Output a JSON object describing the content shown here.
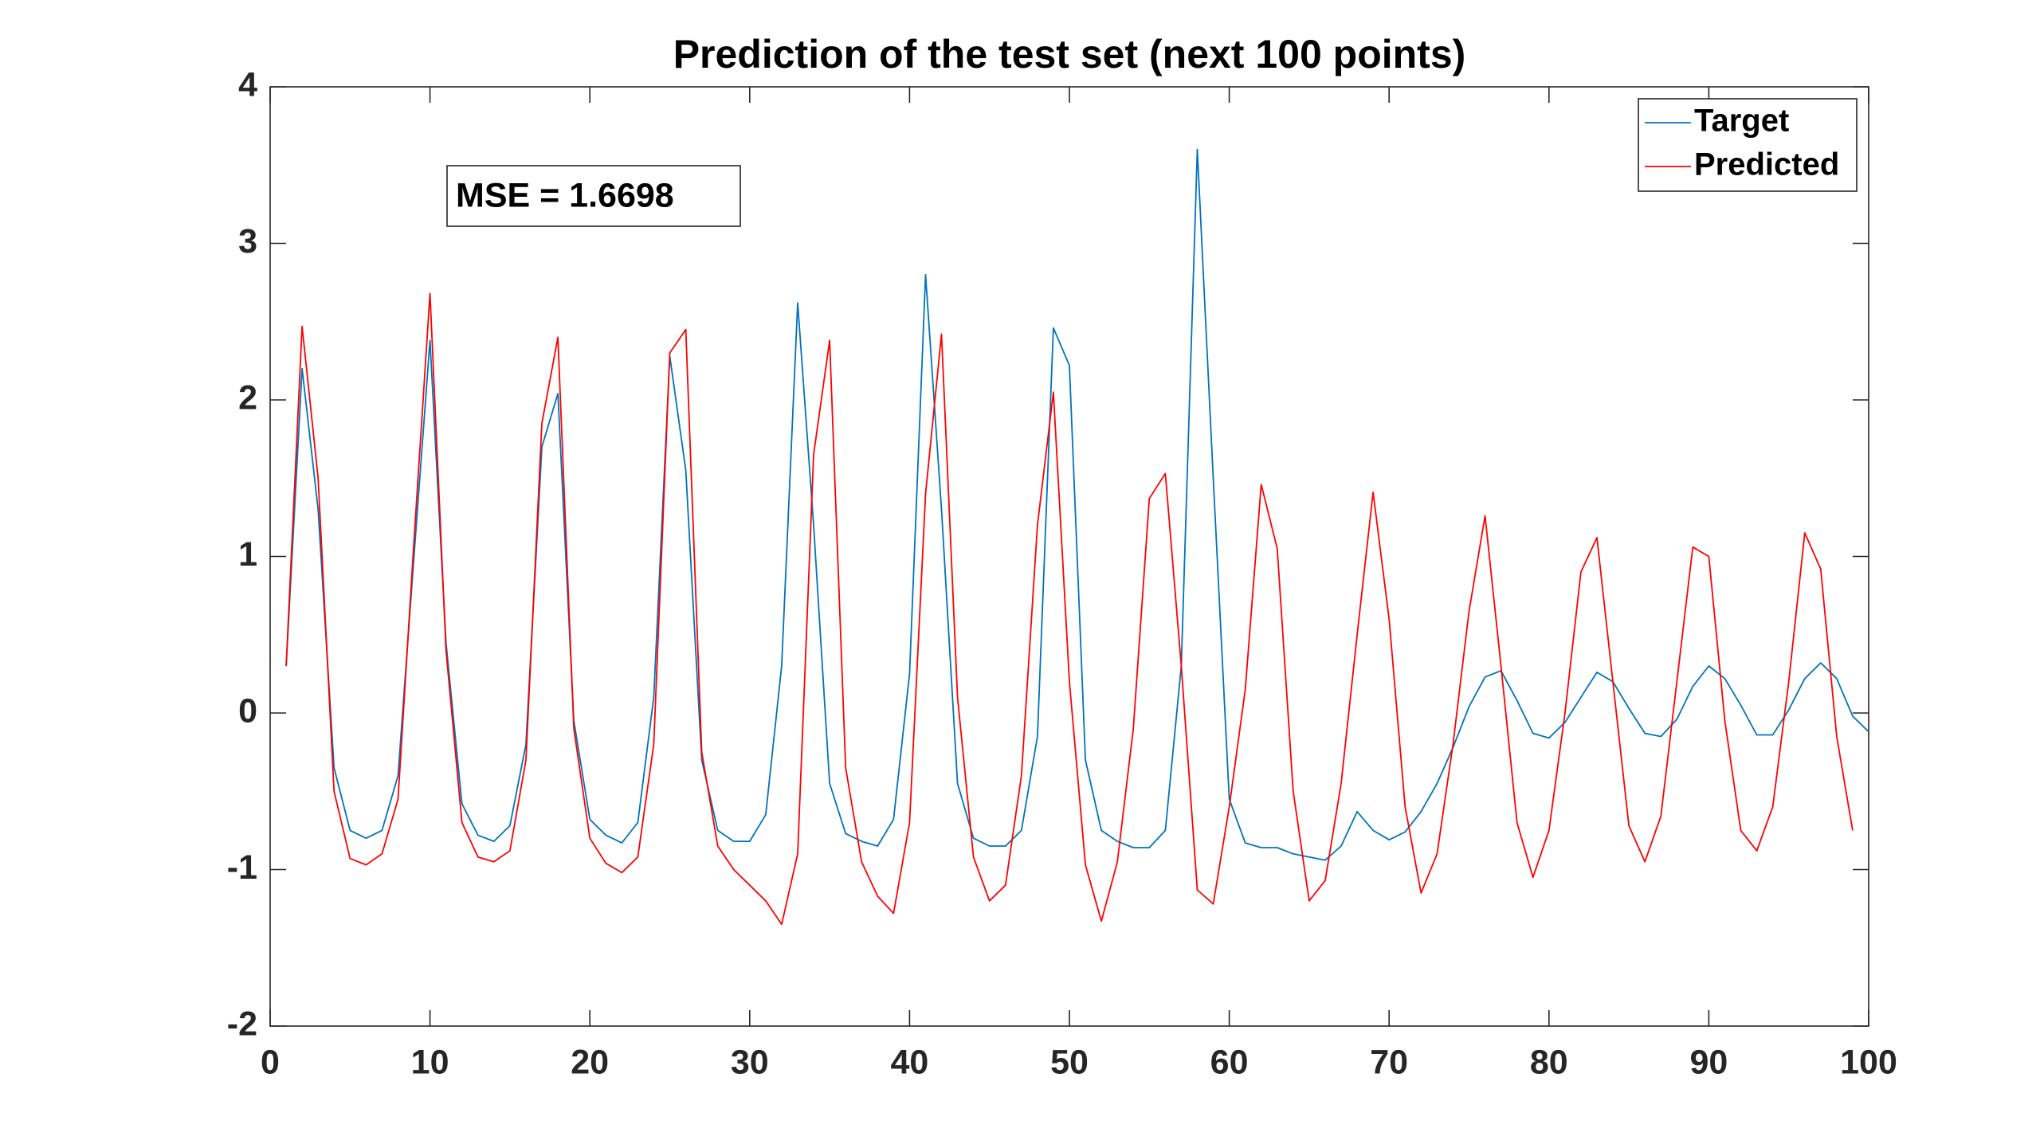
{
  "chart_data": {
    "type": "line",
    "title": "Prediction of the test set (next 100 points)",
    "annotation": "MSE = 1.6698",
    "x": [
      1,
      2,
      3,
      4,
      5,
      6,
      7,
      8,
      9,
      10,
      11,
      12,
      13,
      14,
      15,
      16,
      17,
      18,
      19,
      20,
      21,
      22,
      23,
      24,
      25,
      26,
      27,
      28,
      29,
      30,
      31,
      32,
      33,
      34,
      35,
      36,
      37,
      38,
      39,
      40,
      41,
      42,
      43,
      44,
      45,
      46,
      47,
      48,
      49,
      50,
      51,
      52,
      53,
      54,
      55,
      56,
      57,
      58,
      59,
      60,
      61,
      62,
      63,
      64,
      65,
      66,
      67,
      68,
      69,
      70,
      71,
      72,
      73,
      74,
      75,
      76,
      77,
      78,
      79,
      80,
      81,
      82,
      83,
      84,
      85,
      86,
      87,
      88,
      89,
      90,
      91,
      92,
      93,
      94,
      95,
      96,
      97,
      98,
      99,
      100
    ],
    "series": [
      {
        "name": "Target",
        "color": "#0072bd",
        "values": [
          0.3,
          2.2,
          1.3,
          -0.35,
          -0.75,
          -0.8,
          -0.75,
          -0.4,
          1.0,
          2.38,
          0.45,
          -0.58,
          -0.78,
          -0.82,
          -0.72,
          -0.2,
          1.7,
          2.04,
          -0.05,
          -0.68,
          -0.78,
          -0.83,
          -0.7,
          0.1,
          2.28,
          1.55,
          -0.3,
          -0.75,
          -0.82,
          -0.82,
          -0.65,
          0.3,
          2.62,
          1.2,
          -0.45,
          -0.77,
          -0.82,
          -0.85,
          -0.68,
          0.25,
          2.8,
          1.3,
          -0.45,
          -0.8,
          -0.85,
          -0.85,
          -0.75,
          -0.15,
          2.46,
          2.22,
          -0.3,
          -0.75,
          -0.82,
          -0.86,
          -0.86,
          -0.75,
          0.3,
          3.6,
          1.5,
          -0.55,
          -0.83,
          -0.86,
          -0.86,
          -0.9,
          -0.92,
          -0.94,
          -0.85,
          -0.63,
          -0.75,
          -0.81,
          -0.76,
          -0.63,
          -0.45,
          -0.22,
          0.04,
          0.23,
          0.27,
          0.08,
          -0.13,
          -0.16,
          -0.06,
          0.1,
          0.26,
          0.2,
          0.03,
          -0.13,
          -0.15,
          -0.04,
          0.17,
          0.3,
          0.22,
          0.05,
          -0.14,
          -0.14,
          0.02,
          0.22,
          0.32,
          0.22,
          -0.02,
          -0.12
        ]
      },
      {
        "name": "Predicted",
        "color": "#ff0000",
        "values": [
          0.3,
          2.47,
          1.5,
          -0.5,
          -0.93,
          -0.97,
          -0.9,
          -0.55,
          1.1,
          2.68,
          0.4,
          -0.7,
          -0.92,
          -0.95,
          -0.88,
          -0.3,
          1.85,
          2.4,
          -0.1,
          -0.8,
          -0.96,
          -1.02,
          -0.92,
          -0.2,
          2.3,
          2.45,
          -0.25,
          -0.85,
          -1.0,
          -1.1,
          -1.2,
          -1.35,
          -0.9,
          1.65,
          2.38,
          -0.35,
          -0.95,
          -1.17,
          -1.28,
          -0.7,
          1.4,
          2.42,
          0.1,
          -0.92,
          -1.2,
          -1.1,
          -0.4,
          1.2,
          2.05,
          0.2,
          -0.97,
          -1.33,
          -0.95,
          -0.1,
          1.37,
          1.53,
          0.3,
          -1.13,
          -1.22,
          -0.6,
          0.15,
          1.46,
          1.05,
          -0.5,
          -1.2,
          -1.07,
          -0.45,
          0.5,
          1.41,
          0.6,
          -0.6,
          -1.15,
          -0.9,
          -0.2,
          0.65,
          1.26,
          0.3,
          -0.7,
          -1.05,
          -0.75,
          0.0,
          0.9,
          1.12,
          0.2,
          -0.72,
          -0.95,
          -0.66,
          0.2,
          1.06,
          1.0,
          -0.05,
          -0.75,
          -0.88,
          -0.6,
          0.2,
          1.15,
          0.92,
          -0.15,
          -0.75,
          null
        ]
      }
    ],
    "xlim": [
      0,
      100
    ],
    "xticks": [
      0,
      10,
      20,
      30,
      40,
      50,
      60,
      70,
      80,
      90,
      100
    ],
    "ylim": [
      -2,
      4
    ],
    "yticks": [
      -2,
      -1,
      0,
      1,
      2,
      3,
      4
    ],
    "grid": false,
    "legend": "northeast"
  }
}
